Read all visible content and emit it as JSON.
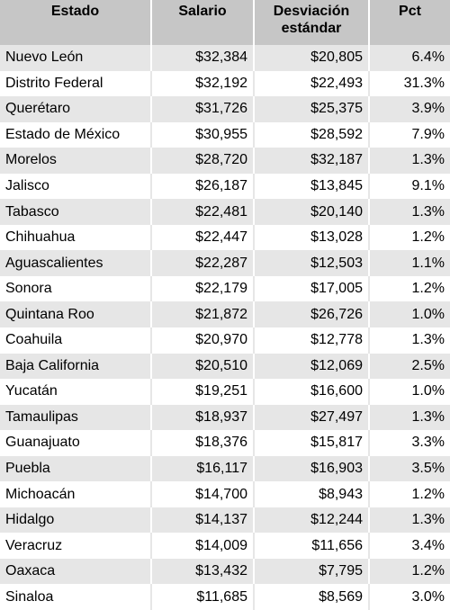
{
  "table": {
    "header": [
      "Estado",
      "Salario",
      "Desviación estándar",
      "Pct"
    ],
    "rows": [
      [
        "Nuevo León",
        "$32,384",
        "$20,805",
        "6.4%"
      ],
      [
        "Distrito Federal",
        "$32,192",
        "$22,493",
        "31.3%"
      ],
      [
        "Querétaro",
        "$31,726",
        "$25,375",
        "3.9%"
      ],
      [
        "Estado de México",
        "$30,955",
        "$28,592",
        "7.9%"
      ],
      [
        "Morelos",
        "$28,720",
        "$32,187",
        "1.3%"
      ],
      [
        "Jalisco",
        "$26,187",
        "$13,845",
        "9.1%"
      ],
      [
        "Tabasco",
        "$22,481",
        "$20,140",
        "1.3%"
      ],
      [
        "Chihuahua",
        "$22,447",
        "$13,028",
        "1.2%"
      ],
      [
        "Aguascalientes",
        "$22,287",
        "$12,503",
        "1.1%"
      ],
      [
        "Sonora",
        "$22,179",
        "$17,005",
        "1.2%"
      ],
      [
        "Quintana Roo",
        "$21,872",
        "$26,726",
        "1.0%"
      ],
      [
        "Coahuila",
        "$20,970",
        "$12,778",
        "1.3%"
      ],
      [
        "Baja California",
        "$20,510",
        "$12,069",
        "2.5%"
      ],
      [
        "Yucatán",
        "$19,251",
        "$16,600",
        "1.0%"
      ],
      [
        "Tamaulipas",
        "$18,937",
        "$27,497",
        "1.3%"
      ],
      [
        "Guanajuato",
        "$18,376",
        "$15,817",
        "3.3%"
      ],
      [
        "Puebla",
        "$16,117",
        "$16,903",
        "3.5%"
      ],
      [
        "Michoacán",
        "$14,700",
        "$8,943",
        "1.2%"
      ],
      [
        "Hidalgo",
        "$14,137",
        "$12,244",
        "1.3%"
      ],
      [
        "Veracruz",
        "$14,009",
        "$11,656",
        "3.4%"
      ],
      [
        "Oaxaca",
        "$13,432",
        "$7,795",
        "1.2%"
      ],
      [
        "Sinaloa",
        "$11,685",
        "$8,569",
        "3.0%"
      ]
    ]
  }
}
